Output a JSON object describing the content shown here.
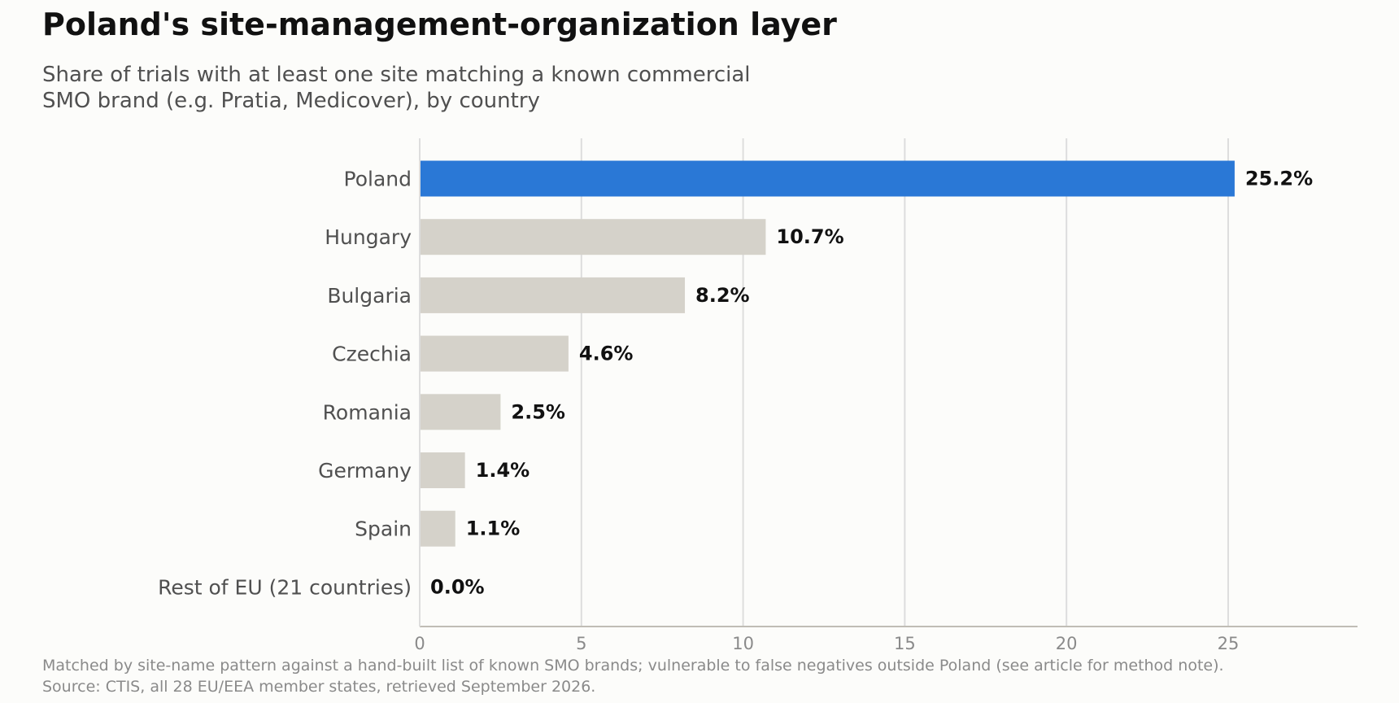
{
  "chart_data": {
    "type": "bar",
    "orientation": "horizontal",
    "title": "Poland's site-management-organization layer",
    "subtitle_lines": [
      "Share of trials with at least one site matching a known commercial",
      "SMO brand (e.g. Pratia, Medicover), by country"
    ],
    "categories": [
      "Poland",
      "Hungary",
      "Bulgaria",
      "Czechia",
      "Romania",
      "Germany",
      "Spain",
      "Rest of EU (21 countries)"
    ],
    "values": [
      25.2,
      10.7,
      8.2,
      4.6,
      2.5,
      1.4,
      1.1,
      0.0
    ],
    "value_labels": [
      "25.2%",
      "10.7%",
      "8.2%",
      "4.6%",
      "2.5%",
      "1.4%",
      "1.1%",
      "0.0%"
    ],
    "highlight_category": "Poland",
    "colors": {
      "highlight": "#2a78d6",
      "default": "#d5d2ca",
      "grid": "#dddddd",
      "axis": "#c0bdb5"
    },
    "xlim": [
      0,
      29
    ],
    "xticks": [
      0,
      5,
      10,
      15,
      20,
      25
    ],
    "xlabel": "",
    "ylabel": "",
    "grid": "vertical",
    "legend": "none",
    "footnote_lines": [
      "Matched by site-name pattern against a hand-built list of known SMO brands; vulnerable to false negatives outside Poland (see article for method note).",
      "Source: CTIS, all 28 EU/EEA member states, retrieved September 2026."
    ]
  }
}
